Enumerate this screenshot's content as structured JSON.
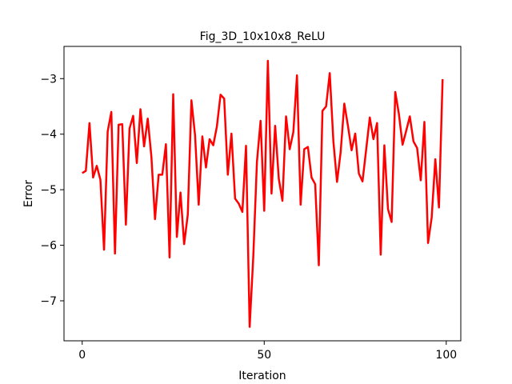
{
  "chart_data": {
    "type": "line",
    "title": "Fig_3D_10x10x8_ReLU",
    "xlabel": "Iteration",
    "ylabel": "Error",
    "xlim": [
      -5,
      104
    ],
    "ylim": [
      -7.72,
      -2.42
    ],
    "xticks": [
      0,
      50,
      100
    ],
    "yticks": [
      -7,
      -6,
      -5,
      -4,
      -3
    ],
    "grid": false,
    "series": [
      {
        "color": "#ff0000",
        "x": [
          0,
          1,
          2,
          3,
          4,
          5,
          6,
          7,
          8,
          9,
          10,
          11,
          12,
          13,
          14,
          15,
          16,
          17,
          18,
          19,
          20,
          21,
          22,
          23,
          24,
          25,
          26,
          27,
          28,
          29,
          30,
          31,
          32,
          33,
          34,
          35,
          36,
          37,
          38,
          39,
          40,
          41,
          42,
          43,
          44,
          45,
          46,
          47,
          48,
          49,
          50,
          51,
          52,
          53,
          54,
          55,
          56,
          57,
          58,
          59,
          60,
          61,
          62,
          63,
          64,
          65,
          66,
          67,
          68,
          69,
          70,
          71,
          72,
          73,
          74,
          75,
          76,
          77,
          78,
          79,
          80,
          81,
          82,
          83,
          84,
          85,
          86,
          87,
          88,
          89,
          90,
          91,
          92,
          93,
          94,
          95,
          96,
          97,
          98,
          99
        ],
        "y": [
          -4.7,
          -4.66,
          -3.8,
          -4.78,
          -4.57,
          -4.82,
          -6.08,
          -3.95,
          -3.6,
          -6.15,
          -3.83,
          -3.82,
          -5.63,
          -3.9,
          -3.67,
          -4.52,
          -3.55,
          -4.22,
          -3.72,
          -4.4,
          -5.53,
          -4.73,
          -4.73,
          -4.18,
          -6.22,
          -3.28,
          -5.85,
          -5.05,
          -5.98,
          -5.45,
          -3.39,
          -4.02,
          -5.27,
          -4.04,
          -4.6,
          -4.09,
          -4.2,
          -3.86,
          -3.29,
          -3.36,
          -4.73,
          -3.99,
          -5.16,
          -5.25,
          -5.4,
          -4.21,
          -7.47,
          -6.2,
          -4.5,
          -3.76,
          -5.38,
          -2.68,
          -5.07,
          -3.85,
          -4.8,
          -5.2,
          -3.68,
          -4.27,
          -3.96,
          -2.94,
          -5.27,
          -4.27,
          -4.23,
          -4.78,
          -4.9,
          -6.36,
          -3.58,
          -3.5,
          -2.9,
          -4.13,
          -4.86,
          -4.32,
          -3.45,
          -3.85,
          -4.29,
          -3.99,
          -4.71,
          -4.85,
          -4.28,
          -3.7,
          -4.09,
          -3.8,
          -6.17,
          -4.2,
          -5.35,
          -5.58,
          -3.24,
          -3.64,
          -4.19,
          -3.94,
          -3.68,
          -4.13,
          -4.25,
          -4.83,
          -3.78,
          -5.96,
          -5.5,
          -4.45,
          -5.32,
          -3.01
        ]
      }
    ]
  }
}
